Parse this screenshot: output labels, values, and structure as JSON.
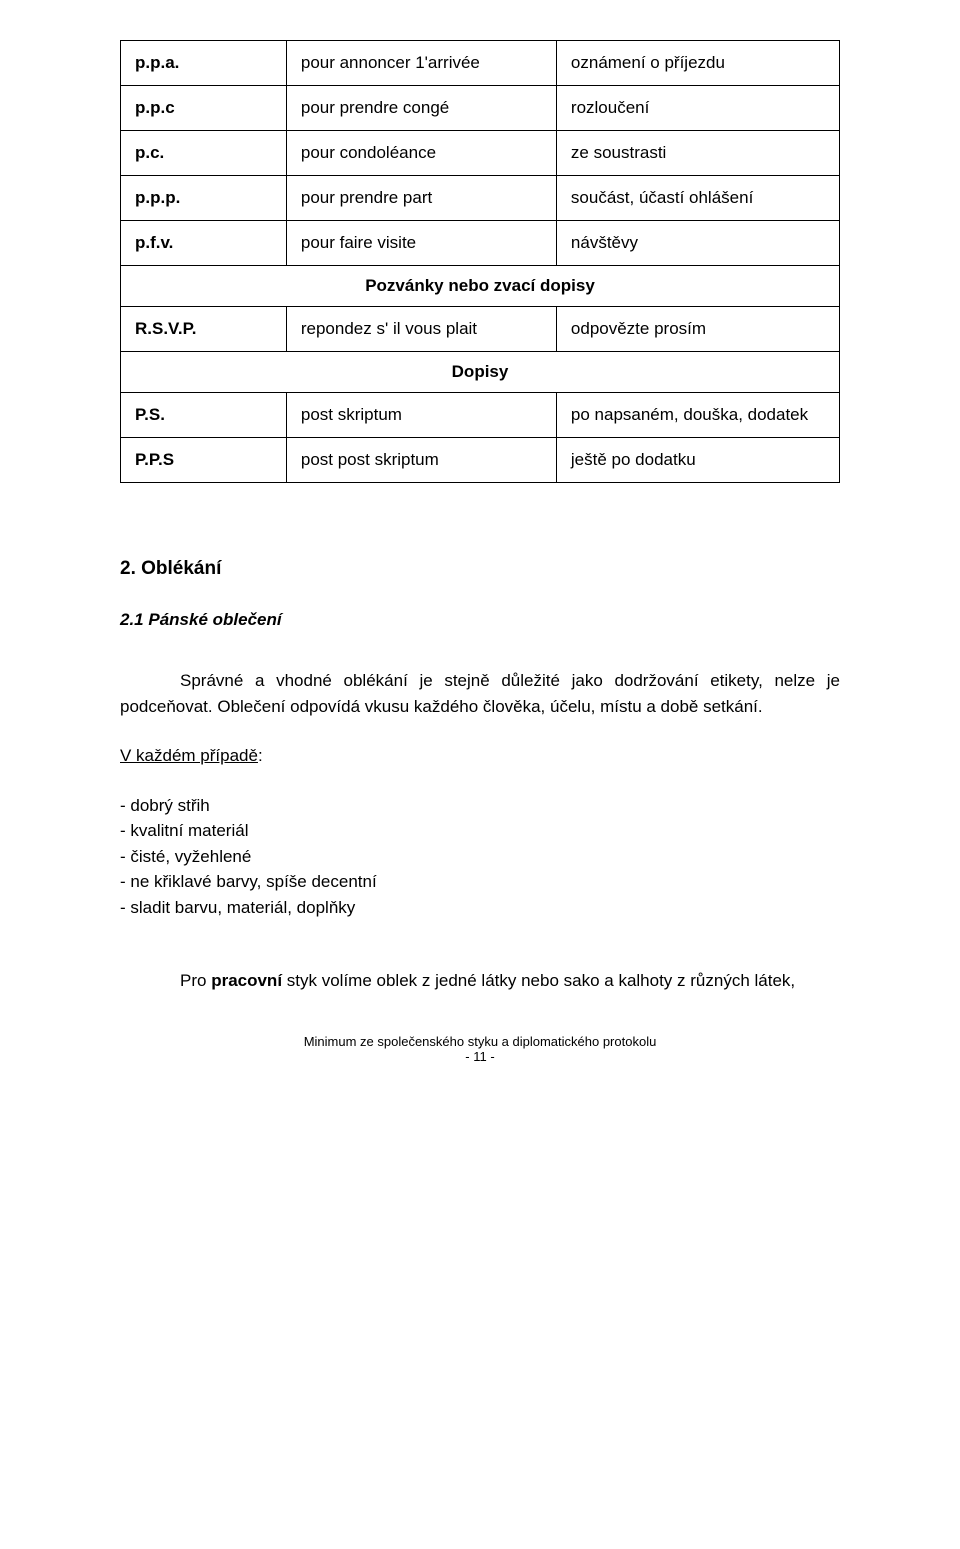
{
  "table": {
    "rows": [
      {
        "abbr": "p.p.a.",
        "fr": "pour annoncer 1'arrivée",
        "cz": "oznámení o příjezdu"
      },
      {
        "abbr": "p.p.c",
        "fr": "pour prendre congé",
        "cz": "rozloučení"
      },
      {
        "abbr": "p.c.",
        "fr": "pour condoléance",
        "cz": "ze soustrasti"
      },
      {
        "abbr": "p.p.p.",
        "fr": "pour prendre part",
        "cz": "součást, účastí ohlášení"
      },
      {
        "abbr": "p.f.v.",
        "fr": "pour faire visite",
        "cz": "návštěvy"
      }
    ],
    "section1": "Pozvánky nebo zvací dopisy",
    "rows2": [
      {
        "abbr": "R.S.V.P.",
        "fr": "repondez s' il vous plait",
        "cz": "odpovězte prosím"
      }
    ],
    "section2": "Dopisy",
    "rows3": [
      {
        "abbr": "P.S.",
        "fr": "post skriptum",
        "cz": "po napsaném, douška, dodatek"
      },
      {
        "abbr": "P.P.S",
        "fr": "post post skriptum",
        "cz": "ještě po dodatku"
      }
    ]
  },
  "heading2": "2. Oblékání",
  "heading21": "2.1 Pánské oblečení",
  "para1": "Správné a vhodné oblékání je stejně důležité jako dodržování etikety, nelze je podceňovat. Oblečení odpovídá vkusu každého člověka, účelu, místu a době setkání.",
  "underline_label": "V každém případě",
  "bullets": [
    "- dobrý střih",
    "- kvalitní materiál",
    "- čisté, vyžehlené",
    "- ne křiklavé barvy, spíše decentní",
    "- sladit barvu, materiál, doplňky"
  ],
  "para2_pre": "Pro ",
  "para2_bold": "pracovní",
  "para2_post": " styk volíme oblek z jedné látky nebo sako a kalhoty z různých látek,",
  "footer": {
    "line1": "Minimum ze společenského styku a diplomatického protokolu",
    "line2": "- 11 -"
  },
  "colors": {
    "text": "#000000",
    "background": "#ffffff",
    "border": "#000000"
  },
  "typography": {
    "body_fontsize": 17,
    "heading_fontsize": 19,
    "footer_fontsize": 13,
    "font_family": "Verdana"
  }
}
